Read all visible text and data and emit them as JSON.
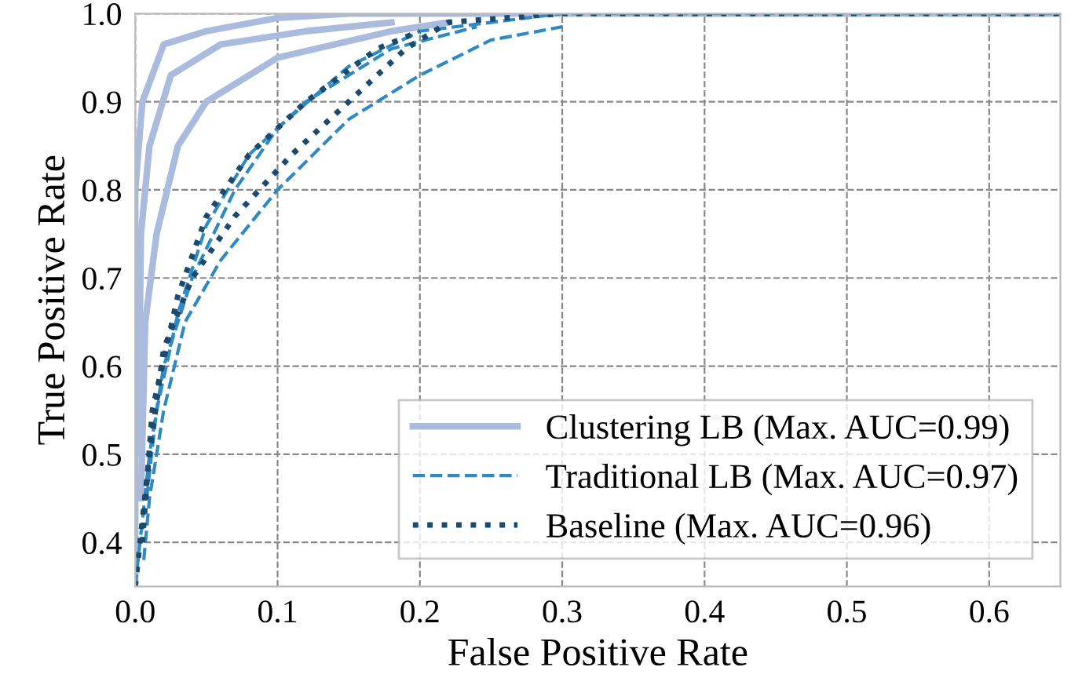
{
  "chart_data": {
    "type": "line",
    "xlabel": "False Positive Rate",
    "ylabel": "True Positive Rate",
    "xlim": [
      0,
      0.65
    ],
    "ylim": [
      0.35,
      1.0
    ],
    "xticks": [
      {
        "value": 0,
        "label": "0.0"
      },
      0.1,
      0.2,
      0.3,
      0.4,
      0.5,
      0.6
    ],
    "yticks": [
      0.4,
      0.5,
      0.6,
      0.7,
      0.8,
      0.9,
      {
        "value": 1.0,
        "label": "1.0"
      }
    ],
    "grid": true,
    "legend": "bottom right",
    "series": [
      {
        "name": "Clustering LB (Max. AUC=0.99)",
        "color": "#aabbdd",
        "line_style": "solid",
        "x": [
          0,
          0,
          0.005,
          0.02,
          0.05,
          0.1,
          0.15,
          0.65
        ],
        "values": [
          0.35,
          0.8,
          0.9,
          0.965,
          0.98,
          0.995,
          1.0,
          1.0
        ]
      },
      {
        "color": "#aabbdd",
        "line_style": "solid",
        "x": [
          0.002,
          0.004,
          0.01,
          0.025,
          0.06,
          0.12,
          0.18
        ],
        "values": [
          0.5,
          0.75,
          0.85,
          0.93,
          0.965,
          0.98,
          0.99
        ]
      },
      {
        "color": "#aabbdd",
        "line_style": "solid",
        "x": [
          0.004,
          0.007,
          0.015,
          0.03,
          0.05,
          0.1,
          0.18,
          0.22
        ],
        "values": [
          0.45,
          0.65,
          0.75,
          0.85,
          0.9,
          0.95,
          0.98,
          0.99
        ]
      },
      {
        "name": "Traditional LB (Max. AUC=0.97)",
        "color": "#2f8ac4",
        "line_style": "dashed",
        "x": [
          0,
          0.01,
          0.02,
          0.04,
          0.07,
          0.1,
          0.15,
          0.2,
          0.3,
          0.65
        ],
        "values": [
          0.35,
          0.5,
          0.6,
          0.7,
          0.8,
          0.87,
          0.94,
          0.98,
          1.0,
          1.0
        ]
      },
      {
        "color": "#2f8ac4",
        "line_style": "dashed",
        "x": [
          0.006,
          0.01,
          0.02,
          0.035,
          0.06,
          0.1,
          0.15,
          0.2,
          0.25,
          0.3
        ],
        "values": [
          0.38,
          0.45,
          0.55,
          0.65,
          0.72,
          0.8,
          0.88,
          0.93,
          0.97,
          0.985
        ]
      },
      {
        "color": "#2f8ac4",
        "line_style": "dashed",
        "x": [
          0.008,
          0.015,
          0.03,
          0.05,
          0.08,
          0.12,
          0.18,
          0.24
        ],
        "values": [
          0.45,
          0.55,
          0.66,
          0.76,
          0.84,
          0.9,
          0.96,
          0.985
        ]
      },
      {
        "name": "Baseline (Max. AUC=0.96)",
        "color": "#1a4a6e",
        "line_style": "dotted",
        "x": [
          0,
          0.01,
          0.02,
          0.04,
          0.07,
          0.11,
          0.15,
          0.19,
          0.22,
          0.3,
          0.65
        ],
        "values": [
          0.35,
          0.5,
          0.62,
          0.7,
          0.77,
          0.84,
          0.9,
          0.96,
          0.99,
          1.0,
          1.0
        ]
      },
      {
        "color": "#1a4a6e",
        "line_style": "dotted",
        "x": [
          0.005,
          0.012,
          0.03,
          0.05,
          0.08,
          0.12,
          0.17,
          0.2
        ],
        "values": [
          0.4,
          0.55,
          0.68,
          0.77,
          0.84,
          0.9,
          0.96,
          0.98
        ]
      }
    ]
  }
}
